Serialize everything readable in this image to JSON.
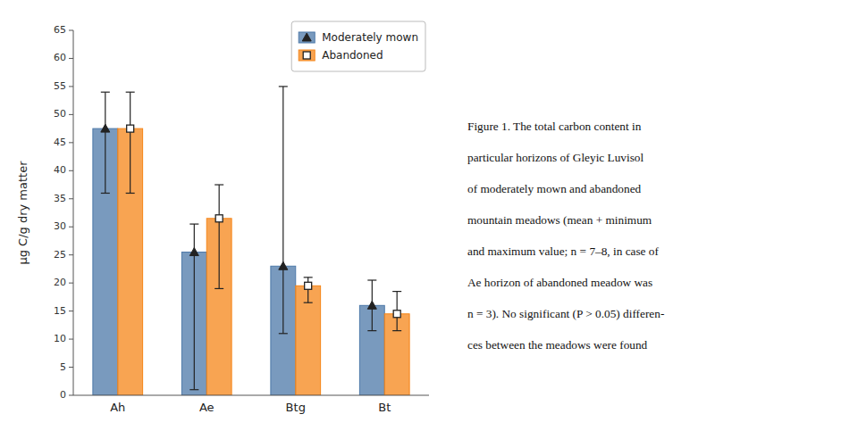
{
  "chart_data": {
    "type": "bar",
    "categories": [
      "Ah",
      "Ae",
      "Btg",
      "Bt"
    ],
    "series": [
      {
        "name": "Moderately mown",
        "marker": "triangle",
        "values": [
          47.5,
          25.5,
          23.0,
          16.0
        ],
        "err_low": [
          11.5,
          24.5,
          12.0,
          4.5
        ],
        "err_high": [
          6.5,
          5.0,
          32.0,
          4.5
        ]
      },
      {
        "name": "Abandoned",
        "marker": "square",
        "values": [
          47.5,
          31.5,
          19.5,
          14.5
        ],
        "err_low": [
          11.5,
          12.5,
          3.0,
          3.0
        ],
        "err_high": [
          6.5,
          6.0,
          1.5,
          4.0
        ]
      }
    ],
    "ylabel": "μg C/g dry matter",
    "ylim": [
      0,
      65
    ],
    "yticks": [
      0,
      5,
      10,
      15,
      20,
      25,
      30,
      35,
      40,
      45,
      50,
      55,
      60,
      65
    ],
    "grid": false,
    "legend": "upper right",
    "annotations": [
      "Figure 1.  The total carbon content in",
      "particular horizons of Gleyic Luvisol",
      "of moderately mown and abandoned",
      "mountain meadows (mean + minimum",
      "and maximum value; n = 7–8, in case of",
      "Ae horizon of abandoned meadow was",
      "n = 3). No significant (P > 0.05) differen-",
      "ces between the meadows were found"
    ]
  }
}
